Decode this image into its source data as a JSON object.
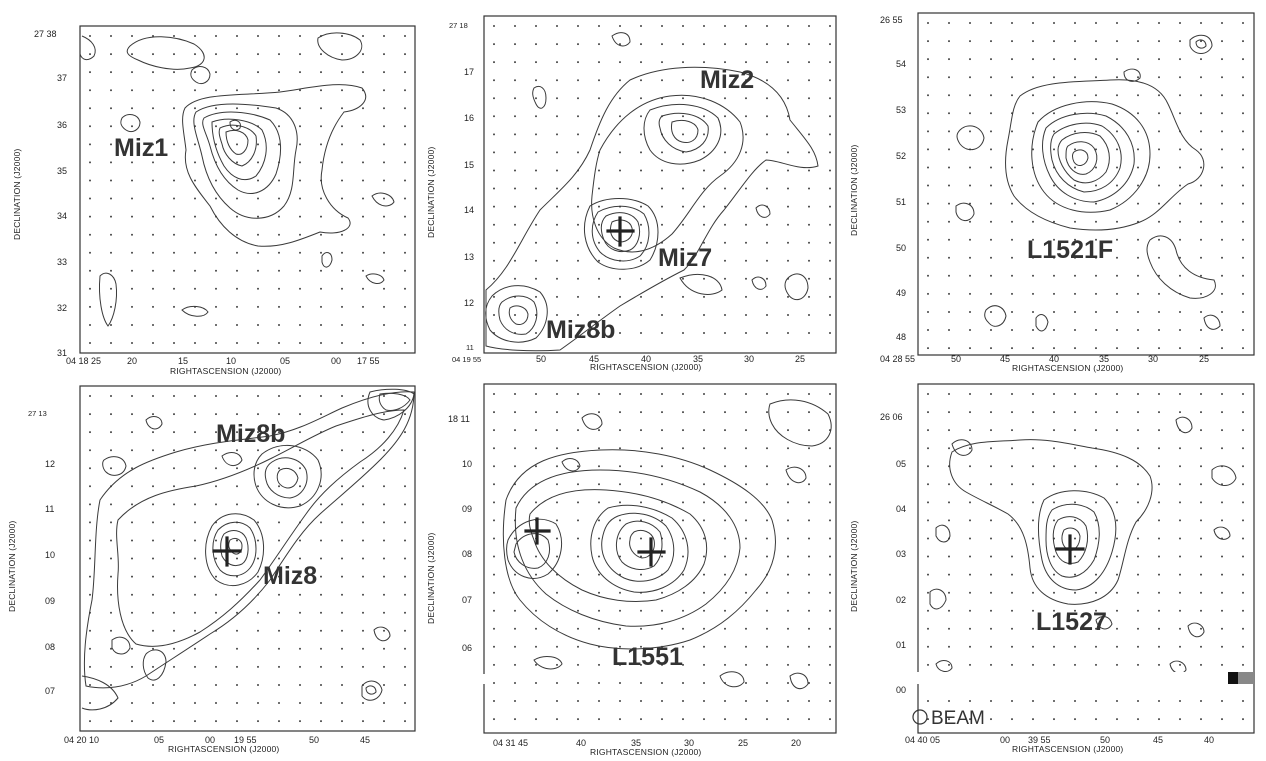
{
  "panels": [
    {
      "id": "miz1",
      "xlabel": "RIGHTASCENSION (J2000)",
      "ylabel": "DECLINATION (J2000)",
      "x_ticks": [
        "04 18 25",
        "20",
        "15",
        "10",
        "05",
        "00",
        "17 55"
      ],
      "y_ticks": [
        "27 38",
        "37",
        "36",
        "35",
        "34",
        "33",
        "32",
        "31"
      ],
      "sources": [
        {
          "name": "Miz1"
        }
      ],
      "markers": [],
      "beam_label": ""
    },
    {
      "id": "miz2-miz7",
      "xlabel": "RIGHTASCENSION (J2000)",
      "ylabel": "DECLINATION (J2000)",
      "x_ticks": [
        "04 19 55",
        "50",
        "45",
        "40",
        "35",
        "30",
        "25"
      ],
      "y_ticks": [
        "27 18",
        "17",
        "16",
        "15",
        "14",
        "13",
        "12",
        "11"
      ],
      "sources": [
        {
          "name": "Miz2"
        },
        {
          "name": "Miz7"
        },
        {
          "name": "Miz8b"
        }
      ],
      "markers": [
        "Miz7"
      ],
      "beam_label": ""
    },
    {
      "id": "l1521f",
      "xlabel": "RIGHTASCENSION (J2000)",
      "ylabel": "DECLINATION (J2000)",
      "x_ticks": [
        "04 28 55",
        "50",
        "45",
        "40",
        "35",
        "30",
        "25"
      ],
      "y_ticks": [
        "26 55",
        "54",
        "53",
        "52",
        "51",
        "50",
        "49",
        "48"
      ],
      "sources": [
        {
          "name": "L1521F"
        }
      ],
      "markers": [],
      "beam_label": ""
    },
    {
      "id": "miz8",
      "xlabel": "RIGHTASCENSION (J2000)",
      "ylabel": "DECLINATION (J2000)",
      "x_ticks": [
        "04 20 10",
        "05",
        "00",
        "19 55",
        "50",
        "45"
      ],
      "y_ticks": [
        "27 13",
        "12",
        "11",
        "10",
        "09",
        "08",
        "07"
      ],
      "sources": [
        {
          "name": "Miz8b"
        },
        {
          "name": "Miz8"
        }
      ],
      "markers": [
        "Miz8"
      ],
      "beam_label": ""
    },
    {
      "id": "l1551",
      "xlabel": "RIGHTASCENSION (J2000)",
      "ylabel": "DECLINATION (J2000)",
      "x_ticks": [
        "04 31 45",
        "40",
        "35",
        "30",
        "25",
        "20"
      ],
      "y_ticks": [
        "18 11",
        "10",
        "09",
        "08",
        "07",
        "06"
      ],
      "sources": [
        {
          "name": "L1551"
        }
      ],
      "markers": [
        "west",
        "L1551"
      ],
      "beam_label": ""
    },
    {
      "id": "l1527",
      "xlabel": "RIGHTASCENSION (J2000)",
      "ylabel": "DECLINATION (J2000)",
      "x_ticks": [
        "04 40 05",
        "00",
        "39 55",
        "50",
        "45",
        "40"
      ],
      "y_ticks": [
        "26 06",
        "05",
        "04",
        "03",
        "02",
        "01",
        "00"
      ],
      "sources": [
        {
          "name": "L1527"
        }
      ],
      "markers": [
        "L1527"
      ],
      "beam_label": "BEAM"
    }
  ]
}
